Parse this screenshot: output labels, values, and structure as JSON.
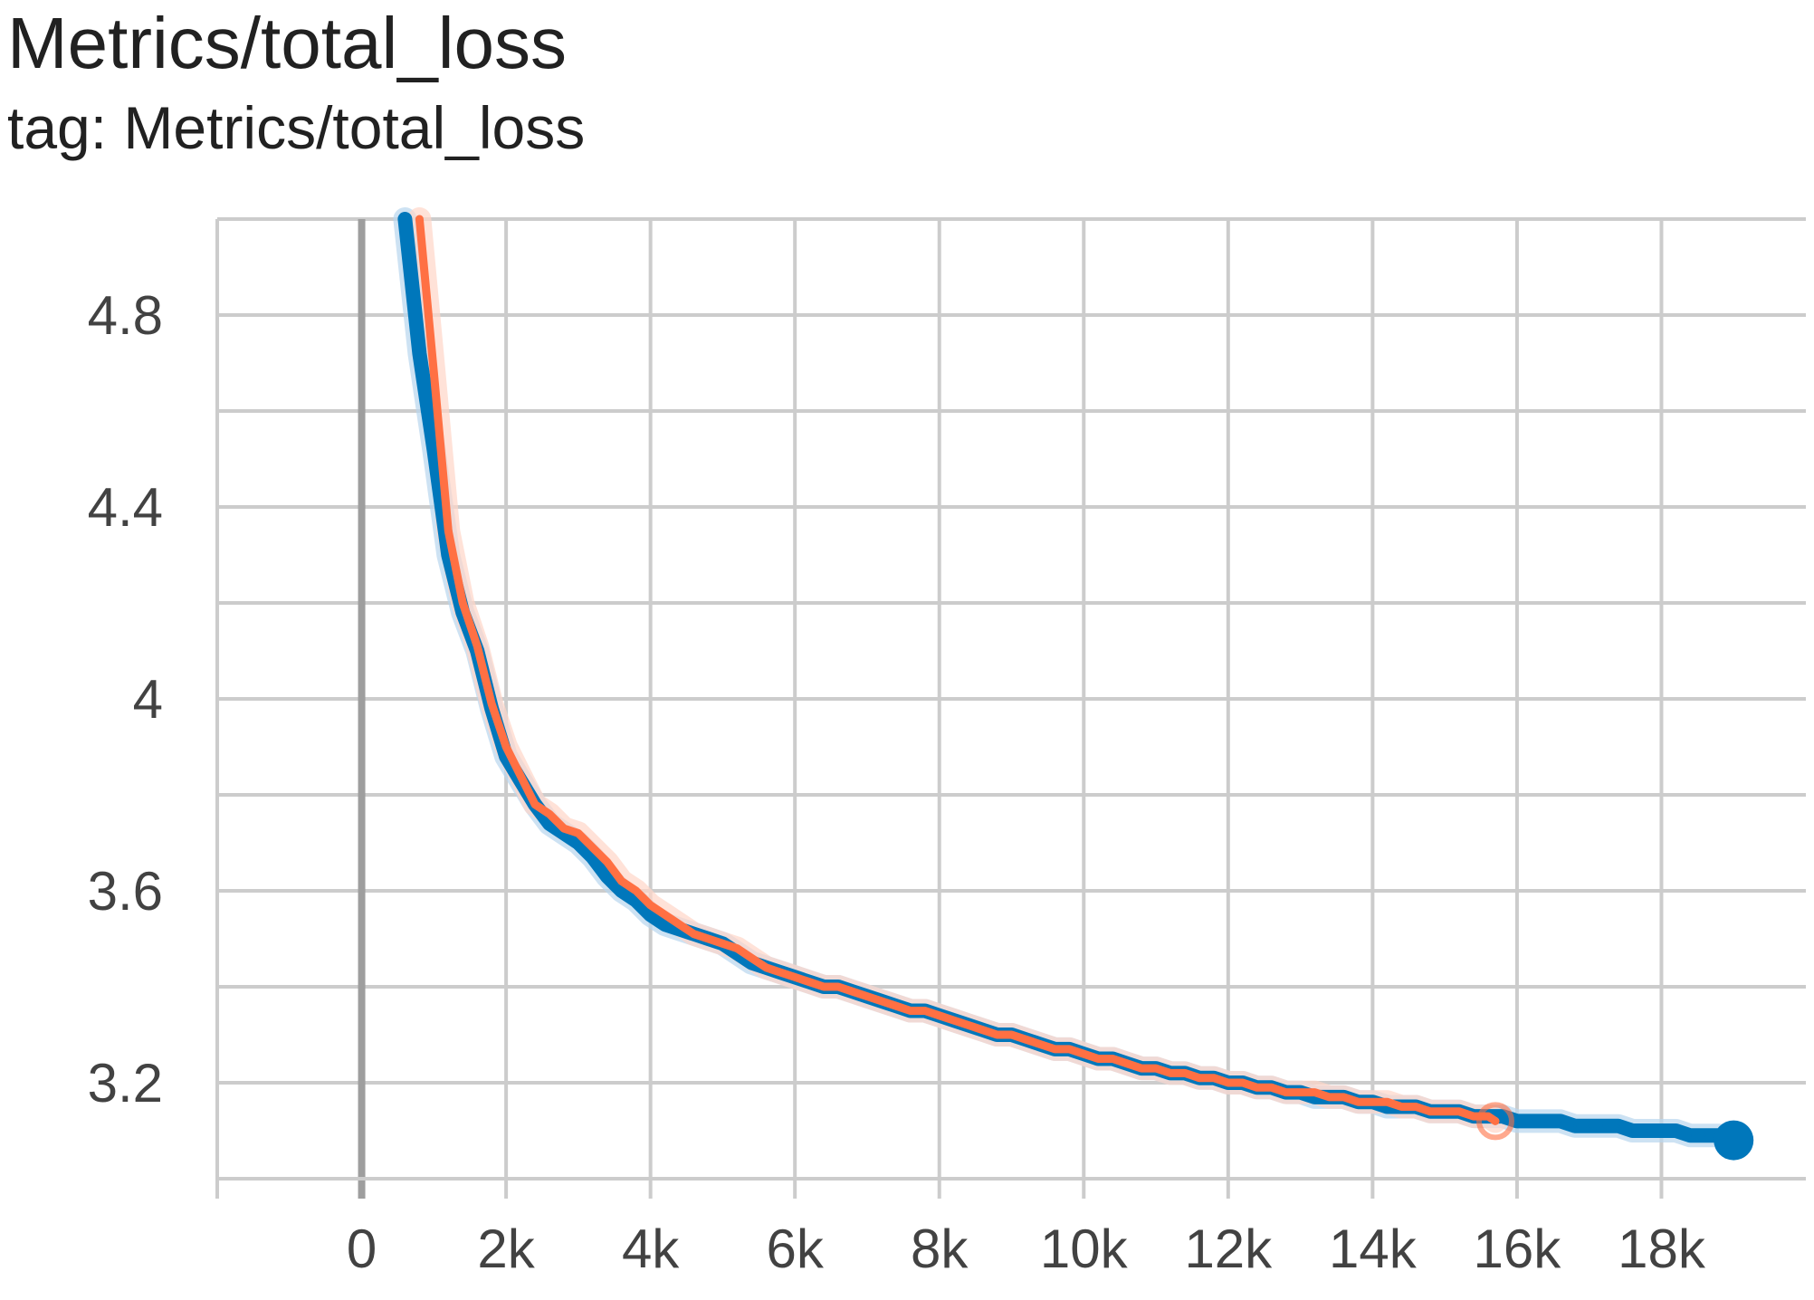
{
  "chart_data": {
    "type": "line",
    "title": "Metrics/total_loss",
    "subtitle": "tag: Metrics/total_loss",
    "xlabel": "",
    "ylabel": "",
    "xlim": [
      -2000,
      20000
    ],
    "ylim": [
      3.0,
      5.0
    ],
    "x_ticks": [
      0,
      2000,
      4000,
      6000,
      8000,
      10000,
      12000,
      14000,
      16000,
      18000
    ],
    "x_tick_labels": [
      "0",
      "2k",
      "4k",
      "6k",
      "8k",
      "10k",
      "12k",
      "14k",
      "16k",
      "18k"
    ],
    "y_ticks": [
      3.2,
      3.6,
      4.0,
      4.4,
      4.8
    ],
    "y_tick_labels": [
      "3.2",
      "3.6",
      "4",
      "4.4",
      "4.8"
    ],
    "grid": true,
    "legend": "none",
    "series": [
      {
        "color": "#0077bb",
        "x": [
          600,
          800,
          1000,
          1200,
          1400,
          1600,
          1800,
          2000,
          2200,
          2400,
          2600,
          2800,
          3000,
          3200,
          3400,
          3600,
          3800,
          4000,
          4200,
          4400,
          4600,
          4800,
          5000,
          5200,
          5400,
          5600,
          5800,
          6000,
          6200,
          6400,
          6600,
          6800,
          7000,
          7200,
          7400,
          7600,
          7800,
          8000,
          8200,
          8400,
          8600,
          8800,
          9000,
          9200,
          9400,
          9600,
          9800,
          10000,
          10200,
          10400,
          10600,
          10800,
          11000,
          11200,
          11400,
          11600,
          11800,
          12000,
          12200,
          12400,
          12600,
          12800,
          13000,
          13200,
          13400,
          13600,
          13800,
          14000,
          14200,
          14400,
          14600,
          14800,
          15000,
          15200,
          15400,
          15600,
          15800,
          16000,
          16200,
          16400,
          16600,
          16800,
          17000,
          17200,
          17400,
          17600,
          17800,
          18000,
          18200,
          18400,
          18600,
          18800,
          19000
        ],
        "y": [
          5.0,
          4.72,
          4.52,
          4.3,
          4.18,
          4.1,
          3.98,
          3.88,
          3.83,
          3.78,
          3.74,
          3.72,
          3.7,
          3.67,
          3.63,
          3.6,
          3.58,
          3.55,
          3.53,
          3.52,
          3.51,
          3.5,
          3.49,
          3.47,
          3.45,
          3.44,
          3.43,
          3.42,
          3.41,
          3.4,
          3.4,
          3.39,
          3.38,
          3.37,
          3.36,
          3.35,
          3.35,
          3.34,
          3.33,
          3.32,
          3.31,
          3.3,
          3.3,
          3.29,
          3.28,
          3.27,
          3.27,
          3.26,
          3.25,
          3.25,
          3.24,
          3.23,
          3.23,
          3.22,
          3.22,
          3.21,
          3.21,
          3.2,
          3.2,
          3.19,
          3.19,
          3.18,
          3.18,
          3.17,
          3.17,
          3.17,
          3.16,
          3.16,
          3.15,
          3.15,
          3.15,
          3.14,
          3.14,
          3.14,
          3.13,
          3.13,
          3.13,
          3.12,
          3.12,
          3.12,
          3.12,
          3.11,
          3.11,
          3.11,
          3.11,
          3.1,
          3.1,
          3.1,
          3.1,
          3.09,
          3.09,
          3.09,
          3.08
        ]
      },
      {
        "color": "#ff7043",
        "x": [
          800,
          1000,
          1200,
          1400,
          1600,
          1800,
          2000,
          2200,
          2400,
          2600,
          2800,
          3000,
          3200,
          3400,
          3600,
          3800,
          4000,
          4200,
          4400,
          4600,
          4800,
          5000,
          5200,
          5400,
          5600,
          5800,
          6000,
          6200,
          6400,
          6600,
          6800,
          7000,
          7200,
          7400,
          7600,
          7800,
          8000,
          8200,
          8400,
          8600,
          8800,
          9000,
          9200,
          9400,
          9600,
          9800,
          10000,
          10200,
          10400,
          10600,
          10800,
          11000,
          11200,
          11400,
          11600,
          11800,
          12000,
          12200,
          12400,
          12600,
          12800,
          13000,
          13200,
          13400,
          13600,
          13800,
          14000,
          14200,
          14400,
          14600,
          14800,
          15000,
          15200,
          15400,
          15600,
          15700
        ],
        "y": [
          5.0,
          4.68,
          4.35,
          4.2,
          4.11,
          3.99,
          3.9,
          3.84,
          3.78,
          3.76,
          3.73,
          3.72,
          3.69,
          3.66,
          3.62,
          3.6,
          3.57,
          3.55,
          3.53,
          3.51,
          3.5,
          3.49,
          3.48,
          3.46,
          3.44,
          3.43,
          3.42,
          3.41,
          3.4,
          3.4,
          3.39,
          3.38,
          3.37,
          3.36,
          3.35,
          3.35,
          3.34,
          3.33,
          3.32,
          3.31,
          3.3,
          3.3,
          3.29,
          3.28,
          3.27,
          3.27,
          3.26,
          3.25,
          3.25,
          3.24,
          3.23,
          3.23,
          3.22,
          3.22,
          3.21,
          3.21,
          3.2,
          3.2,
          3.19,
          3.19,
          3.18,
          3.18,
          3.18,
          3.17,
          3.17,
          3.16,
          3.16,
          3.16,
          3.15,
          3.15,
          3.14,
          3.14,
          3.14,
          3.13,
          3.13,
          3.12
        ]
      }
    ]
  }
}
